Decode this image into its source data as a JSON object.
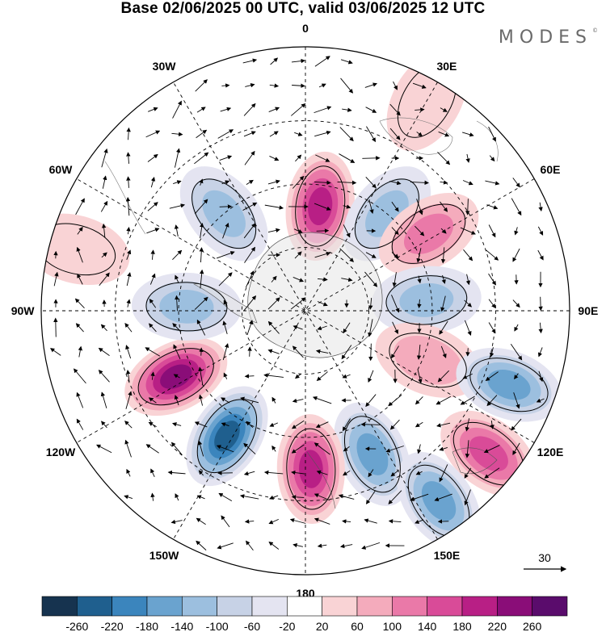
{
  "title": "Base 02/06/2025 00 UTC, valid 03/06/2025 12 UTC",
  "logo": {
    "text": "MODES",
    "mark": "©"
  },
  "map": {
    "projection": "south-polar-stereographic",
    "longitude_labels": [
      {
        "text": "0",
        "angle": 0
      },
      {
        "text": "30E",
        "angle": 30
      },
      {
        "text": "60E",
        "angle": 60
      },
      {
        "text": "90E",
        "angle": 90
      },
      {
        "text": "120E",
        "angle": 120
      },
      {
        "text": "150E",
        "angle": 150
      },
      {
        "text": "180",
        "angle": 180
      },
      {
        "text": "150W",
        "angle": 210
      },
      {
        "text": "120W",
        "angle": 240
      },
      {
        "text": "90W",
        "angle": 270
      },
      {
        "text": "60W",
        "angle": 300
      },
      {
        "text": "30W",
        "angle": 330
      }
    ],
    "vector_reference": {
      "label": "30"
    },
    "anomaly_centers": [
      {
        "lon": 8,
        "lat_frac": 0.4,
        "value": 200
      },
      {
        "lon": 40,
        "lat_frac": 0.48,
        "value": -120
      },
      {
        "lon": 58,
        "lat_frac": 0.55,
        "value": 100
      },
      {
        "lon": 85,
        "lat_frac": 0.46,
        "value": -110
      },
      {
        "lon": 112,
        "lat_frac": 0.5,
        "value": 80
      },
      {
        "lon": 110,
        "lat_frac": 0.82,
        "value": -140
      },
      {
        "lon": 128,
        "lat_frac": 0.88,
        "value": 160
      },
      {
        "lon": 155,
        "lat_frac": 0.6,
        "value": -160
      },
      {
        "lon": 145,
        "lat_frac": 0.88,
        "value": -140
      },
      {
        "lon": 178,
        "lat_frac": 0.6,
        "value": 200
      },
      {
        "lon": 212,
        "lat_frac": 0.56,
        "value": -230
      },
      {
        "lon": 243,
        "lat_frac": 0.55,
        "value": 250
      },
      {
        "lon": 272,
        "lat_frac": 0.45,
        "value": -120
      },
      {
        "lon": 320,
        "lat_frac": 0.48,
        "value": -100
      },
      {
        "lon": 30,
        "lat_frac": 0.92,
        "value": 40
      },
      {
        "lon": 285,
        "lat_frac": 0.9,
        "value": 40
      }
    ]
  },
  "colorbar": {
    "colors": [
      "#16334f",
      "#1f5f8e",
      "#3b85bd",
      "#6aa3cf",
      "#9cbfdf",
      "#c7d2e6",
      "#e4e4f1",
      "#ffffff",
      "#f9d3d5",
      "#f4abbc",
      "#ea79a8",
      "#d94b98",
      "#b81f85",
      "#8a0d78",
      "#5a0c6c"
    ],
    "tick_labels": [
      "-260",
      "-220",
      "-180",
      "-140",
      "-100",
      "-60",
      "-20",
      "20",
      "60",
      "100",
      "140",
      "180",
      "220",
      "260"
    ]
  }
}
